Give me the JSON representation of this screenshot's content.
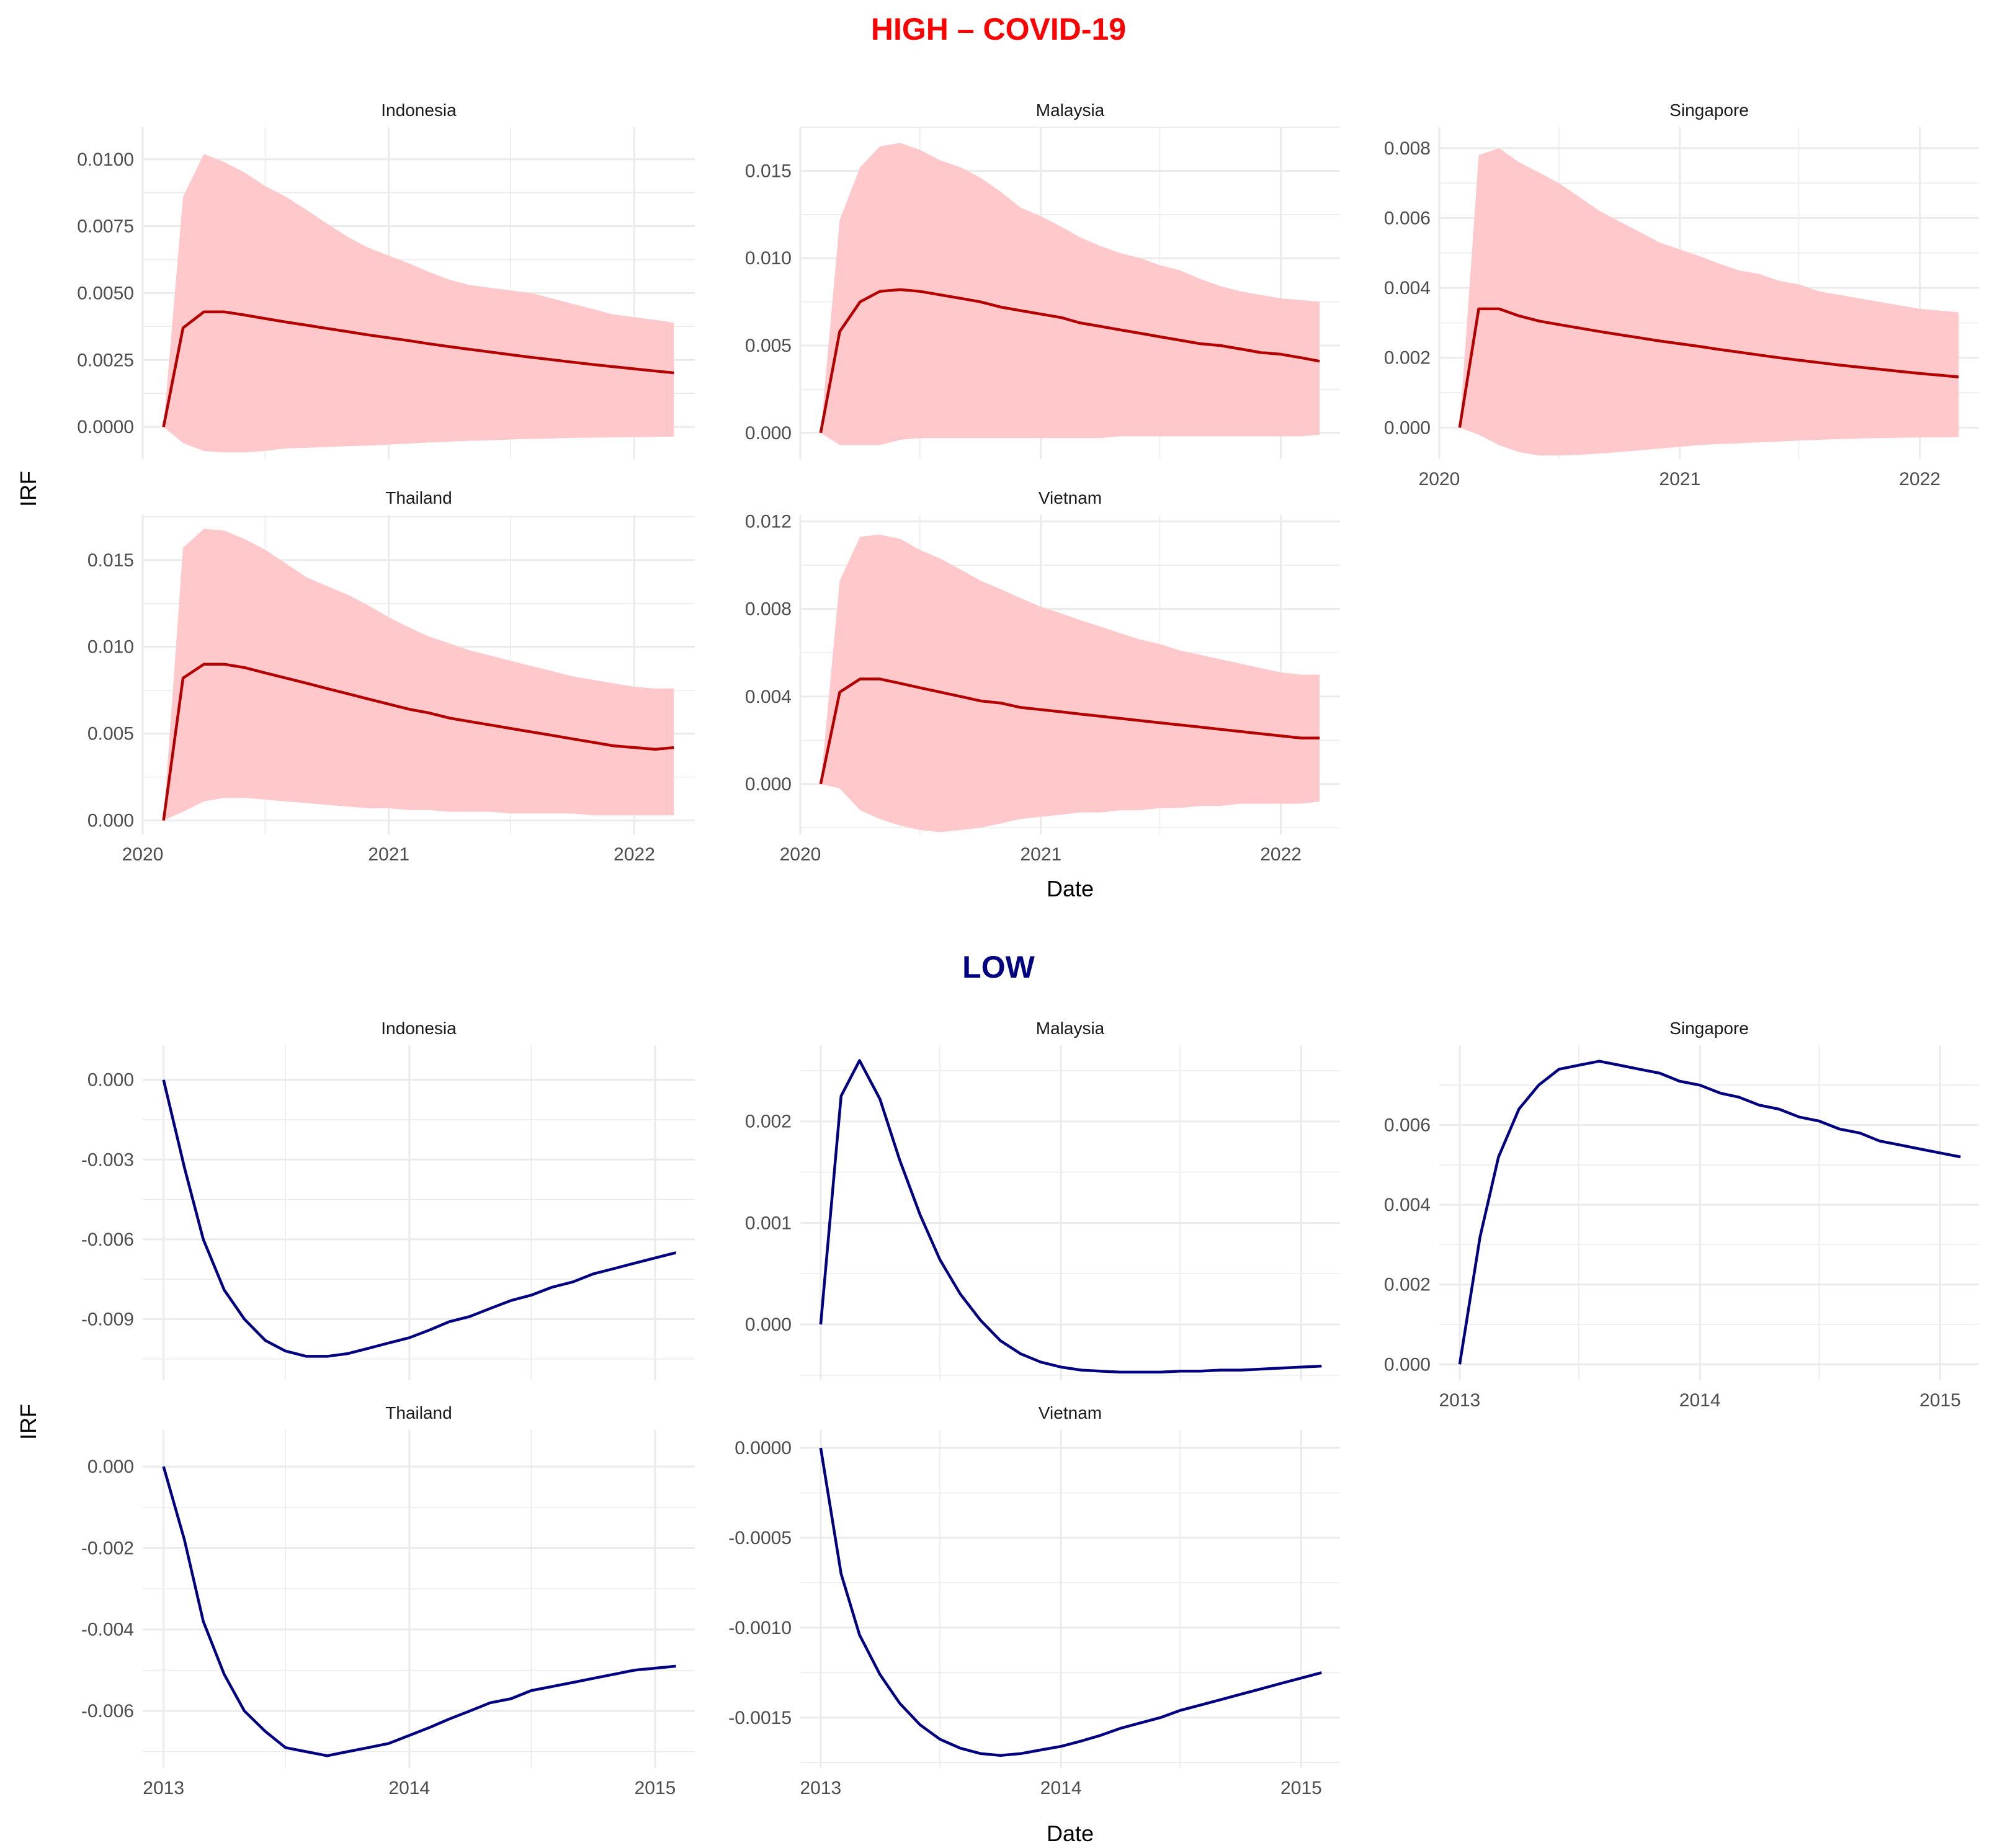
{
  "sections": {
    "high": {
      "title": "HIGH – COVID-19",
      "color": "#ff0000"
    },
    "low": {
      "title": "LOW",
      "color": "#000080"
    }
  },
  "axis_labels": {
    "x": "Date",
    "y": "IRF"
  },
  "colors": {
    "high_line": "#b30000",
    "high_band": "#ffc9cb",
    "low_line": "#000080",
    "grid": "#ebebeb",
    "axis_text": "#4d4d4d",
    "title_text": "#1a1a1a"
  },
  "chart_data": [
    {
      "group": "high",
      "type": "area",
      "title": "Indonesia",
      "x": [
        "2020-02",
        "2020-03",
        "2020-04",
        "2020-05",
        "2020-06",
        "2020-07",
        "2020-08",
        "2020-09",
        "2020-10",
        "2020-11",
        "2020-12",
        "2021-01",
        "2021-02",
        "2021-03",
        "2021-04",
        "2021-05",
        "2021-06",
        "2021-07",
        "2021-08",
        "2021-09",
        "2021-10",
        "2021-11",
        "2021-12",
        "2022-01",
        "2022-02",
        "2022-03"
      ],
      "xlim": [
        "2020-01-01",
        "2022-04-01"
      ],
      "x_ticks": [
        "2020",
        "2021",
        "2022"
      ],
      "y_ticks": [
        "0.0000",
        "0.0025",
        "0.0050",
        "0.0075",
        "0.0100"
      ],
      "ylim": [
        -0.0012,
        0.0112
      ],
      "irf": [
        0,
        0.0037,
        0.0043,
        0.0043,
        0.00418,
        0.00405,
        0.00392,
        0.0038,
        0.00368,
        0.00356,
        0.00344,
        0.00333,
        0.00322,
        0.00311,
        0.003,
        0.0029,
        0.0028,
        0.0027,
        0.0026,
        0.00251,
        0.00242,
        0.00233,
        0.00225,
        0.00217,
        0.00209,
        0.00202
      ],
      "lower": [
        0,
        -0.0006,
        -0.0009,
        -0.00095,
        -0.00095,
        -0.0009,
        -0.0008,
        -0.00078,
        -0.00075,
        -0.00072,
        -0.0007,
        -0.00066,
        -0.00062,
        -0.00058,
        -0.00055,
        -0.00052,
        -0.0005,
        -0.00047,
        -0.00045,
        -0.00043,
        -0.00041,
        -0.0004,
        -0.00039,
        -0.00038,
        -0.00037,
        -0.00036
      ],
      "upper": [
        0,
        0.0086,
        0.0102,
        0.0099,
        0.0095,
        0.009,
        0.0086,
        0.0081,
        0.0076,
        0.0071,
        0.0067,
        0.0064,
        0.0061,
        0.0058,
        0.0055,
        0.0053,
        0.0052,
        0.0051,
        0.005,
        0.0048,
        0.0046,
        0.0044,
        0.0042,
        0.0041,
        0.004,
        0.0039
      ]
    },
    {
      "group": "high",
      "type": "area",
      "title": "Malaysia",
      "x": [
        "2020-02",
        "2020-03",
        "2020-04",
        "2020-05",
        "2020-06",
        "2020-07",
        "2020-08",
        "2020-09",
        "2020-10",
        "2020-11",
        "2020-12",
        "2021-01",
        "2021-02",
        "2021-03",
        "2021-04",
        "2021-05",
        "2021-06",
        "2021-07",
        "2021-08",
        "2021-09",
        "2021-10",
        "2021-11",
        "2021-12",
        "2022-01",
        "2022-02",
        "2022-03"
      ],
      "xlim": [
        "2020-01-01",
        "2022-04-01"
      ],
      "x_ticks": [
        "2020",
        "2021",
        "2022"
      ],
      "y_ticks": [
        "0.000",
        "0.005",
        "0.010",
        "0.015"
      ],
      "ylim": [
        -0.0015,
        0.0175
      ],
      "irf": [
        0,
        0.0058,
        0.0075,
        0.0081,
        0.0082,
        0.0081,
        0.0079,
        0.0077,
        0.0075,
        0.0072,
        0.007,
        0.0068,
        0.0066,
        0.0063,
        0.0061,
        0.0059,
        0.0057,
        0.0055,
        0.0053,
        0.0051,
        0.005,
        0.0048,
        0.0046,
        0.0045,
        0.0043,
        0.0041
      ],
      "lower": [
        0,
        -0.0007,
        -0.0007,
        -0.0007,
        -0.0004,
        -0.0003,
        -0.0003,
        -0.0003,
        -0.0003,
        -0.0003,
        -0.0003,
        -0.0003,
        -0.0003,
        -0.0003,
        -0.0003,
        -0.0002,
        -0.0002,
        -0.0002,
        -0.0002,
        -0.0002,
        -0.0002,
        -0.0002,
        -0.0002,
        -0.0002,
        -0.0002,
        -0.0001
      ],
      "upper": [
        0,
        0.0122,
        0.0152,
        0.0164,
        0.0166,
        0.0162,
        0.0156,
        0.0152,
        0.0146,
        0.0138,
        0.0129,
        0.0124,
        0.0118,
        0.0112,
        0.0107,
        0.0103,
        0.01,
        0.0096,
        0.0093,
        0.0088,
        0.0084,
        0.0081,
        0.0079,
        0.0077,
        0.0076,
        0.0075
      ]
    },
    {
      "group": "high",
      "type": "area",
      "title": "Singapore",
      "x": [
        "2020-02",
        "2020-03",
        "2020-04",
        "2020-05",
        "2020-06",
        "2020-07",
        "2020-08",
        "2020-09",
        "2020-10",
        "2020-11",
        "2020-12",
        "2021-01",
        "2021-02",
        "2021-03",
        "2021-04",
        "2021-05",
        "2021-06",
        "2021-07",
        "2021-08",
        "2021-09",
        "2021-10",
        "2021-11",
        "2021-12",
        "2022-01",
        "2022-02",
        "2022-03"
      ],
      "xlim": [
        "2020-01-01",
        "2022-04-01"
      ],
      "x_ticks": [
        "2020",
        "2021",
        "2022"
      ],
      "y_ticks": [
        "0.000",
        "0.002",
        "0.004",
        "0.006",
        "0.008"
      ],
      "ylim": [
        -0.0009,
        0.0086
      ],
      "irf": [
        0,
        0.0034,
        0.0034,
        0.0032,
        0.00305,
        0.00295,
        0.00285,
        0.00275,
        0.00266,
        0.00257,
        0.00248,
        0.0024,
        0.00232,
        0.00224,
        0.00216,
        0.00208,
        0.002,
        0.00193,
        0.00186,
        0.00179,
        0.00173,
        0.00167,
        0.00161,
        0.00155,
        0.0015,
        0.00145
      ],
      "lower": [
        0,
        -0.0002,
        -0.0005,
        -0.0007,
        -0.0008,
        -0.0008,
        -0.00078,
        -0.00074,
        -0.0007,
        -0.00065,
        -0.0006,
        -0.00055,
        -0.0005,
        -0.00047,
        -0.00045,
        -0.00042,
        -0.0004,
        -0.00037,
        -0.00035,
        -0.00033,
        -0.00031,
        -0.0003,
        -0.00029,
        -0.00028,
        -0.00028,
        -0.00027
      ],
      "upper": [
        0,
        0.0078,
        0.008,
        0.0076,
        0.0073,
        0.007,
        0.0066,
        0.0062,
        0.0059,
        0.0056,
        0.0053,
        0.0051,
        0.0049,
        0.0047,
        0.0045,
        0.0044,
        0.0042,
        0.0041,
        0.0039,
        0.0038,
        0.0037,
        0.0036,
        0.0035,
        0.0034,
        0.00335,
        0.0033
      ]
    },
    {
      "group": "high",
      "type": "area",
      "title": "Thailand",
      "x": [
        "2020-02",
        "2020-03",
        "2020-04",
        "2020-05",
        "2020-06",
        "2020-07",
        "2020-08",
        "2020-09",
        "2020-10",
        "2020-11",
        "2020-12",
        "2021-01",
        "2021-02",
        "2021-03",
        "2021-04",
        "2021-05",
        "2021-06",
        "2021-07",
        "2021-08",
        "2021-09",
        "2021-10",
        "2021-11",
        "2021-12",
        "2022-01",
        "2022-02",
        "2022-03"
      ],
      "xlim": [
        "2020-01-01",
        "2022-04-01"
      ],
      "x_ticks": [
        "2020",
        "2021",
        "2022"
      ],
      "y_ticks": [
        "0.000",
        "0.005",
        "0.010",
        "0.015"
      ],
      "ylim": [
        -0.0008,
        0.0176
      ],
      "irf": [
        0,
        0.0082,
        0.009,
        0.009,
        0.0088,
        0.0085,
        0.0082,
        0.0079,
        0.0076,
        0.0073,
        0.007,
        0.0067,
        0.0064,
        0.0062,
        0.0059,
        0.0057,
        0.0055,
        0.0053,
        0.0051,
        0.0049,
        0.0047,
        0.0045,
        0.0043,
        0.0042,
        0.0041,
        0.0042
      ],
      "lower": [
        0,
        0.0005,
        0.0011,
        0.0013,
        0.0013,
        0.0012,
        0.0011,
        0.001,
        0.0009,
        0.0008,
        0.0007,
        0.0007,
        0.0006,
        0.0006,
        0.0005,
        0.0005,
        0.0005,
        0.0004,
        0.0004,
        0.0004,
        0.0004,
        0.0003,
        0.0003,
        0.0003,
        0.0003,
        0.0003
      ],
      "upper": [
        0,
        0.0157,
        0.0168,
        0.0167,
        0.0162,
        0.0156,
        0.0148,
        0.014,
        0.0135,
        0.013,
        0.0124,
        0.0117,
        0.0111,
        0.0106,
        0.0102,
        0.0098,
        0.0095,
        0.0092,
        0.0089,
        0.0086,
        0.0083,
        0.0081,
        0.0079,
        0.0077,
        0.0076,
        0.0076
      ]
    },
    {
      "group": "high",
      "type": "area",
      "title": "Vietnam",
      "x": [
        "2020-02",
        "2020-03",
        "2020-04",
        "2020-05",
        "2020-06",
        "2020-07",
        "2020-08",
        "2020-09",
        "2020-10",
        "2020-11",
        "2020-12",
        "2021-01",
        "2021-02",
        "2021-03",
        "2021-04",
        "2021-05",
        "2021-06",
        "2021-07",
        "2021-08",
        "2021-09",
        "2021-10",
        "2021-11",
        "2021-12",
        "2022-01",
        "2022-02",
        "2022-03"
      ],
      "xlim": [
        "2020-01-01",
        "2022-04-01"
      ],
      "x_ticks": [
        "2020",
        "2021",
        "2022"
      ],
      "y_ticks": [
        "0.000",
        "0.004",
        "0.008",
        "0.012"
      ],
      "ylim": [
        -0.0023,
        0.0123
      ],
      "irf": [
        0,
        0.0042,
        0.0048,
        0.0048,
        0.0046,
        0.0044,
        0.0042,
        0.004,
        0.0038,
        0.0037,
        0.0035,
        0.0034,
        0.0033,
        0.0032,
        0.0031,
        0.003,
        0.0029,
        0.0028,
        0.0027,
        0.0026,
        0.0025,
        0.0024,
        0.0023,
        0.0022,
        0.0021,
        0.0021
      ],
      "lower": [
        0,
        -0.0002,
        -0.0012,
        -0.0016,
        -0.0019,
        -0.0021,
        -0.0022,
        -0.0021,
        -0.002,
        -0.0018,
        -0.0016,
        -0.0015,
        -0.0014,
        -0.0013,
        -0.0013,
        -0.0012,
        -0.0012,
        -0.0011,
        -0.0011,
        -0.001,
        -0.001,
        -0.0009,
        -0.0009,
        -0.0009,
        -0.0009,
        -0.0008
      ],
      "upper": [
        0,
        0.0093,
        0.0113,
        0.0114,
        0.0112,
        0.0107,
        0.0103,
        0.0098,
        0.0093,
        0.0089,
        0.0085,
        0.0081,
        0.0078,
        0.0075,
        0.0072,
        0.0069,
        0.0066,
        0.0064,
        0.0061,
        0.0059,
        0.0057,
        0.0055,
        0.0053,
        0.0051,
        0.005,
        0.005
      ]
    },
    {
      "group": "low",
      "type": "line",
      "title": "Indonesia",
      "x": [
        "2013-01",
        "2013-02",
        "2013-03",
        "2013-04",
        "2013-05",
        "2013-06",
        "2013-07",
        "2013-08",
        "2013-09",
        "2013-10",
        "2013-11",
        "2013-12",
        "2014-01",
        "2014-02",
        "2014-03",
        "2014-04",
        "2014-05",
        "2014-06",
        "2014-07",
        "2014-08",
        "2014-09",
        "2014-10",
        "2014-11",
        "2014-12",
        "2015-01",
        "2015-02"
      ],
      "xlim": [
        "2012-12-01",
        "2015-03-01"
      ],
      "x_ticks": [
        "2013",
        "2014",
        "2015"
      ],
      "y_ticks": [
        "0.000",
        "-0.003",
        "-0.006",
        "-0.009"
      ],
      "ylim": [
        -0.0113,
        0.0013
      ],
      "irf": [
        0,
        -0.0033,
        -0.006,
        -0.0079,
        -0.009,
        -0.0098,
        -0.0102,
        -0.0104,
        -0.0104,
        -0.0103,
        -0.0101,
        -0.0099,
        -0.0097,
        -0.0094,
        -0.0091,
        -0.0089,
        -0.0086,
        -0.0083,
        -0.0081,
        -0.0078,
        -0.0076,
        -0.0073,
        -0.0071,
        -0.0069,
        -0.0067,
        -0.0065
      ]
    },
    {
      "group": "low",
      "type": "line",
      "title": "Malaysia",
      "x": [
        "2013-01",
        "2013-02",
        "2013-03",
        "2013-04",
        "2013-05",
        "2013-06",
        "2013-07",
        "2013-08",
        "2013-09",
        "2013-10",
        "2013-11",
        "2013-12",
        "2014-01",
        "2014-02",
        "2014-03",
        "2014-04",
        "2014-05",
        "2014-06",
        "2014-07",
        "2014-08",
        "2014-09",
        "2014-10",
        "2014-11",
        "2014-12",
        "2015-01",
        "2015-02"
      ],
      "xlim": [
        "2012-12-01",
        "2015-03-01"
      ],
      "x_ticks": [
        "2013",
        "2014",
        "2015"
      ],
      "y_ticks": [
        "0.000",
        "0.001",
        "0.002"
      ],
      "ylim": [
        -0.00055,
        0.00275
      ],
      "irf": [
        0,
        0.00225,
        0.0026,
        0.00222,
        0.00162,
        0.00108,
        0.00064,
        0.0003,
        4e-05,
        -0.00016,
        -0.00029,
        -0.00037,
        -0.00042,
        -0.00045,
        -0.00046,
        -0.00047,
        -0.00047,
        -0.00047,
        -0.00046,
        -0.00046,
        -0.00045,
        -0.00045,
        -0.00044,
        -0.00043,
        -0.00042,
        -0.00041
      ]
    },
    {
      "group": "low",
      "type": "line",
      "title": "Singapore",
      "x": [
        "2013-01",
        "2013-02",
        "2013-03",
        "2013-04",
        "2013-05",
        "2013-06",
        "2013-07",
        "2013-08",
        "2013-09",
        "2013-10",
        "2013-11",
        "2013-12",
        "2014-01",
        "2014-02",
        "2014-03",
        "2014-04",
        "2014-05",
        "2014-06",
        "2014-07",
        "2014-08",
        "2014-09",
        "2014-10",
        "2014-11",
        "2014-12",
        "2015-01",
        "2015-02"
      ],
      "xlim": [
        "2012-12-01",
        "2015-03-01"
      ],
      "x_ticks": [
        "2013",
        "2014",
        "2015"
      ],
      "y_ticks": [
        "0.000",
        "0.002",
        "0.004",
        "0.006"
      ],
      "ylim": [
        -0.0004,
        0.008
      ],
      "irf": [
        0,
        0.0032,
        0.0052,
        0.0064,
        0.007,
        0.0074,
        0.0075,
        0.0076,
        0.0075,
        0.0074,
        0.0073,
        0.0071,
        0.007,
        0.0068,
        0.0067,
        0.0065,
        0.0064,
        0.0062,
        0.0061,
        0.0059,
        0.0058,
        0.0056,
        0.0055,
        0.0054,
        0.0053,
        0.0052
      ]
    },
    {
      "group": "low",
      "type": "line",
      "title": "Thailand",
      "x": [
        "2013-01",
        "2013-02",
        "2013-03",
        "2013-04",
        "2013-05",
        "2013-06",
        "2013-07",
        "2013-08",
        "2013-09",
        "2013-10",
        "2013-11",
        "2013-12",
        "2014-01",
        "2014-02",
        "2014-03",
        "2014-04",
        "2014-05",
        "2014-06",
        "2014-07",
        "2014-08",
        "2014-09",
        "2014-10",
        "2014-11",
        "2014-12",
        "2015-01",
        "2015-02"
      ],
      "xlim": [
        "2012-12-01",
        "2015-03-01"
      ],
      "x_ticks": [
        "2013",
        "2014",
        "2015"
      ],
      "y_ticks": [
        "0.000",
        "-0.002",
        "-0.004",
        "-0.006"
      ],
      "ylim": [
        -0.0074,
        0.0009
      ],
      "irf": [
        0,
        -0.0018,
        -0.0038,
        -0.0051,
        -0.006,
        -0.0065,
        -0.0069,
        -0.007,
        -0.0071,
        -0.007,
        -0.0069,
        -0.0068,
        -0.0066,
        -0.0064,
        -0.0062,
        -0.006,
        -0.0058,
        -0.0057,
        -0.0055,
        -0.0054,
        -0.0053,
        -0.0052,
        -0.0051,
        -0.005,
        -0.00495,
        -0.0049
      ]
    },
    {
      "group": "low",
      "type": "line",
      "title": "Vietnam",
      "x": [
        "2013-01",
        "2013-02",
        "2013-03",
        "2013-04",
        "2013-05",
        "2013-06",
        "2013-07",
        "2013-08",
        "2013-09",
        "2013-10",
        "2013-11",
        "2013-12",
        "2014-01",
        "2014-02",
        "2014-03",
        "2014-04",
        "2014-05",
        "2014-06",
        "2014-07",
        "2014-08",
        "2014-09",
        "2014-10",
        "2014-11",
        "2014-12",
        "2015-01",
        "2015-02"
      ],
      "xlim": [
        "2012-12-01",
        "2015-03-01"
      ],
      "x_ticks": [
        "2013",
        "2014",
        "2015"
      ],
      "y_ticks": [
        "0.0000",
        "-0.0005",
        "-0.0010",
        "-0.0015"
      ],
      "ylim": [
        -0.00178,
        0.0001
      ],
      "irf": [
        0,
        -0.0007,
        -0.00104,
        -0.00126,
        -0.00142,
        -0.00154,
        -0.00162,
        -0.00167,
        -0.0017,
        -0.00171,
        -0.0017,
        -0.00168,
        -0.00166,
        -0.00163,
        -0.0016,
        -0.00156,
        -0.00153,
        -0.0015,
        -0.00146,
        -0.00143,
        -0.0014,
        -0.00137,
        -0.00134,
        -0.00131,
        -0.00128,
        -0.00125
      ]
    }
  ]
}
